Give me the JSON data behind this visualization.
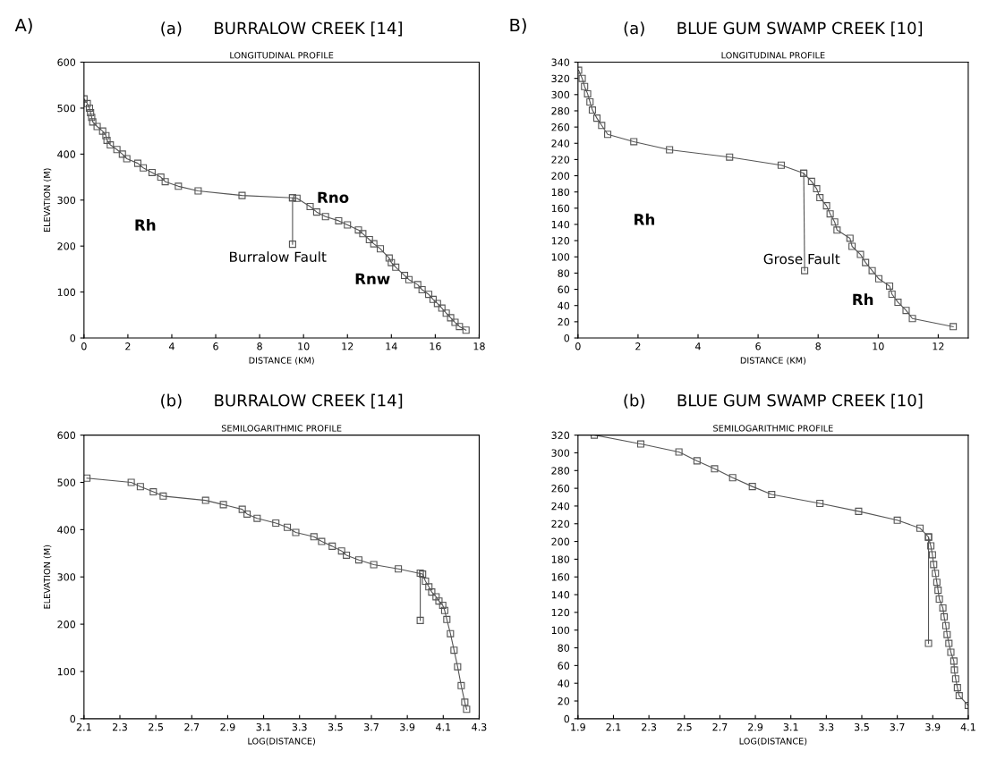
{
  "chart_data": [
    {
      "type": "line",
      "title": "(a)      BURRALOW CREEK [14]",
      "subtitle": "LONGITUDINAL PROFILE",
      "xlabel": "DISTANCE (KM)",
      "ylabel": "ELEVATION (M)",
      "xlim": [
        0,
        18
      ],
      "xticks": [
        0,
        2,
        4,
        6,
        8,
        10,
        12,
        14,
        16,
        18
      ],
      "ylim": [
        0,
        600
      ],
      "yticks": [
        0,
        100,
        200,
        300,
        400,
        500,
        600
      ],
      "marker": "square",
      "grid": false,
      "legend": false,
      "annotations": [
        "A)",
        "Rh",
        "Rno",
        "Burralow Fault",
        "Rnw"
      ],
      "series": [
        {
          "color": "#555555",
          "x": [
            0,
            0.15,
            0.25,
            0.3,
            0.35,
            0.4,
            0.6,
            0.85,
            1.0,
            1.05,
            1.2,
            1.5,
            1.75,
            1.95,
            2.45,
            2.7,
            3.1,
            3.5,
            3.7,
            4.3,
            5.2,
            7.2,
            9.5,
            9.7,
            10.3,
            10.6,
            11.0,
            11.6,
            12.0,
            12.5,
            12.7,
            13.0,
            13.2,
            13.5,
            13.9,
            14.0,
            14.2,
            14.6,
            14.8,
            15.2,
            15.4,
            15.7,
            15.9,
            16.1,
            16.3,
            16.5,
            16.7,
            16.9,
            17.1,
            17.4
          ],
          "values": [
            520,
            510,
            500,
            490,
            480,
            470,
            460,
            450,
            440,
            430,
            420,
            410,
            400,
            390,
            380,
            370,
            360,
            350,
            340,
            330,
            320,
            310,
            305,
            304,
            286,
            274,
            264,
            255,
            246,
            235,
            227,
            214,
            205,
            194,
            174,
            164,
            154,
            136,
            127,
            116,
            105,
            95,
            84,
            75,
            65,
            54,
            44,
            34,
            25,
            17
          ]
        },
        {
          "color": "#555555",
          "x": [
            9.5,
            9.5
          ],
          "values": [
            305,
            204
          ]
        }
      ]
    },
    {
      "type": "line",
      "title": "(a)      BLUE GUM SWAMP CREEK [10]",
      "subtitle": "LONGITUDINAL PROFILE",
      "xlabel": "DISTANCE (KM)",
      "xlim": [
        0,
        13
      ],
      "xticks": [
        0,
        2,
        4,
        6,
        8,
        10,
        12
      ],
      "ylim": [
        0,
        340
      ],
      "yticks": [
        0,
        20,
        40,
        60,
        80,
        100,
        120,
        140,
        160,
        180,
        200,
        220,
        240,
        260,
        280,
        300,
        320,
        340
      ],
      "marker": "square",
      "grid": false,
      "legend": false,
      "annotations": [
        "B)",
        "Rh",
        {
          "text": "Grose Fault",
          "x": 7.45,
          "y": 96
        },
        "Rh"
      ],
      "series": [
        {
          "color": "#555555",
          "x": [
            0.02,
            0.14,
            0.22,
            0.32,
            0.4,
            0.48,
            0.63,
            0.79,
            0.99,
            1.86,
            3.05,
            5.05,
            6.77,
            7.52,
            7.78,
            7.95,
            8.06,
            8.28,
            8.4,
            8.55,
            8.63,
            9.06,
            9.13,
            9.41,
            9.58,
            9.8,
            10.02,
            10.38,
            10.46,
            10.66,
            10.93,
            11.14,
            12.5
          ],
          "values": [
            330,
            320,
            310,
            301,
            291,
            281,
            271,
            262,
            251,
            242,
            232,
            223,
            213,
            203,
            193,
            184,
            173,
            163,
            153,
            143,
            133,
            123,
            113,
            103,
            93,
            83,
            73,
            64,
            54,
            44,
            34,
            24,
            14
          ]
        },
        {
          "color": "#555555",
          "x": [
            7.52,
            7.55
          ],
          "values": [
            203,
            83
          ]
        }
      ]
    },
    {
      "type": "line",
      "title": "(b)      BURRALOW CREEK [14]",
      "subtitle": "SEMILOGARITHMIC PROFILE",
      "xlabel": "LOG(DISTANCE)",
      "ylabel": "ELEVATION (M)",
      "xlim": [
        2.1,
        4.3
      ],
      "xticks": [
        2.1,
        2.3,
        2.5,
        2.7,
        2.9,
        3.1,
        3.3,
        3.5,
        3.7,
        3.9,
        4.1,
        4.3
      ],
      "ylim": [
        0,
        600
      ],
      "yticks": [
        0,
        100,
        200,
        300,
        400,
        500,
        600
      ],
      "marker": "square",
      "grid": false,
      "legend": false,
      "series": [
        {
          "color": "#555555",
          "x": [
            2.116,
            2.363,
            2.414,
            2.486,
            2.541,
            2.777,
            2.876,
            2.981,
            3.008,
            3.064,
            3.168,
            3.232,
            3.279,
            3.38,
            3.423,
            3.482,
            3.534,
            3.561,
            3.63,
            3.713,
            3.85,
            3.985,
            4.001,
            4.02,
            4.036,
            4.06,
            4.076,
            4.097,
            4.108,
            4.12,
            4.14,
            4.16,
            4.18,
            4.2,
            4.22,
            4.23
          ],
          "values": [
            509,
            500,
            491,
            480,
            471,
            462,
            453,
            443,
            433,
            424,
            414,
            405,
            394,
            385,
            375,
            365,
            355,
            346,
            336,
            326,
            317,
            306,
            291,
            279,
            268,
            258,
            249,
            240,
            229,
            210,
            180,
            145,
            110,
            70,
            35,
            20
          ]
        },
        {
          "color": "#555555",
          "x": [
            3.972,
            3.972
          ],
          "values": [
            308,
            208
          ]
        }
      ]
    },
    {
      "type": "line",
      "title": "(b)      BLUE GUM SWAMP CREEK [10]",
      "subtitle": "SEMILOGARITHMIC PROFILE",
      "xlabel": "LOG(DISTANCE)",
      "xlim": [
        1.9,
        4.1
      ],
      "xticks": [
        1.9,
        2.1,
        2.3,
        2.5,
        2.7,
        2.9,
        3.1,
        3.3,
        3.5,
        3.7,
        3.9,
        4.1
      ],
      "ylim": [
        0,
        320
      ],
      "yticks": [
        0,
        20,
        40,
        60,
        80,
        100,
        120,
        140,
        160,
        180,
        200,
        220,
        240,
        260,
        280,
        300,
        320
      ],
      "marker": "square",
      "grid": false,
      "legend": false,
      "series": [
        {
          "color": "#555555",
          "x": [
            1.992,
            2.254,
            2.469,
            2.571,
            2.67,
            2.772,
            2.883,
            2.992,
            3.264,
            3.482,
            3.7,
            3.828,
            3.876,
            3.889,
            3.898,
            3.905,
            3.915,
            3.923,
            3.93,
            3.937,
            3.957,
            3.964,
            3.974,
            3.981,
            3.991,
            4.002,
            4.019,
            4.022,
            4.029,
            4.039,
            4.049,
            4.1
          ],
          "values": [
            320,
            310,
            301,
            291,
            282,
            272,
            262,
            253,
            243,
            234,
            224,
            215,
            205,
            195,
            185,
            174,
            164,
            154,
            145,
            135,
            125,
            115,
            105,
            95,
            85,
            75,
            65,
            55,
            45,
            35,
            26,
            15
          ]
        },
        {
          "color": "#555555",
          "x": [
            3.876,
            3.876
          ],
          "values": [
            205,
            85
          ]
        }
      ]
    }
  ]
}
